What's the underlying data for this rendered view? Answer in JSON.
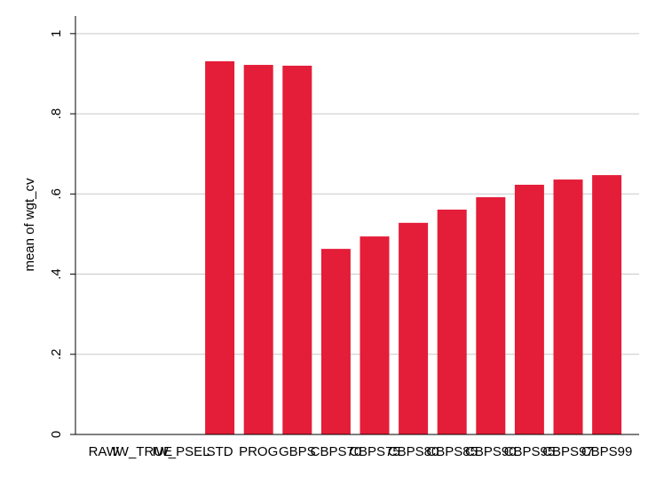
{
  "chart_data": {
    "type": "bar",
    "y_axis_label": "mean of wgt_cv",
    "categories": [
      "RAW",
      "IW_TRUE",
      "IW_PSEL",
      "STD",
      "PROG",
      "GBPS",
      "CBPS70",
      "CBPS75",
      "CBPS80",
      "CBPS85",
      "CBPS90",
      "CBPS95",
      "CBPS97",
      "CBPS99"
    ],
    "values": [
      null,
      null,
      null,
      0.931,
      0.922,
      0.92,
      0.463,
      0.494,
      0.528,
      0.561,
      0.592,
      0.623,
      0.636,
      0.647
    ],
    "color": "#e41d38",
    "ylim": [
      0,
      1.044
    ],
    "yticks": [
      0,
      {
        "value": 0.2,
        "label": ".2"
      },
      {
        "value": 0.4,
        "label": ".4"
      },
      {
        "value": 0.6,
        "label": ".6"
      },
      {
        "value": 0.8,
        "label": ".8"
      },
      1
    ],
    "grid": true
  }
}
